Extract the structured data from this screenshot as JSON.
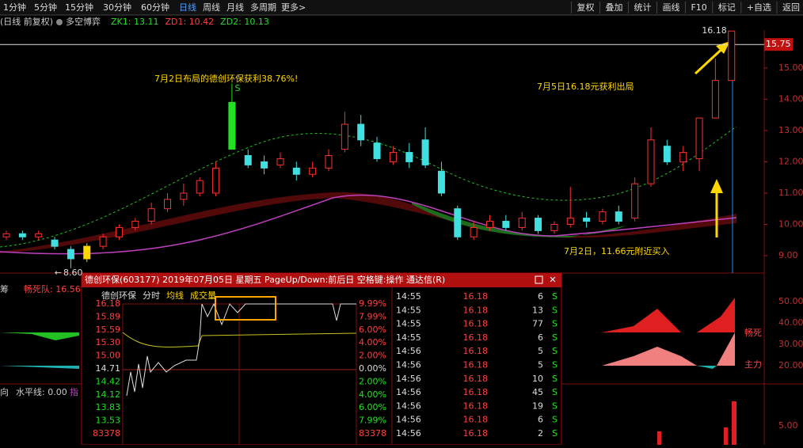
{
  "toolbar": {
    "periods": [
      "1分钟",
      "5分钟",
      "15分钟",
      "30分钟",
      "60分钟",
      "日线",
      "周线",
      "月线",
      "多周期",
      "更多>"
    ],
    "actions": [
      "复权",
      "叠加",
      "统计",
      "画线",
      "F10",
      "标记",
      "+自选",
      "返回"
    ]
  },
  "indicator_bar": {
    "mode": "(日线 前复权)",
    "name": "多空博弈",
    "items": [
      "ZK1: 13.11",
      "ZD1: 10.42",
      "ZD2: 10.13"
    ]
  },
  "price_chart": {
    "ylim": [
      8.57,
      16.16
    ],
    "yticks": [
      {
        "value": 9,
        "label": "9.00"
      },
      {
        "value": 10,
        "label": "10.00"
      },
      {
        "value": 11,
        "label": "11.00"
      },
      {
        "value": 12,
        "label": "12.00"
      },
      {
        "value": 13,
        "label": "13.00"
      },
      {
        "value": 14,
        "label": "14.00"
      },
      {
        "value": 15,
        "label": "15.00"
      }
    ],
    "current_price": 15.75,
    "high_price": 16.18,
    "low_price": {
      "value": 8.6,
      "label": "8.60"
    },
    "signal": "S",
    "candles": [
      [
        9.6,
        9.7,
        9.8,
        9.5
      ],
      [
        9.7,
        9.6,
        9.8,
        9.5
      ],
      [
        9.6,
        9.7,
        9.8,
        9.5
      ],
      [
        9.5,
        9.3,
        9.6,
        9.2
      ],
      [
        9.2,
        8.9,
        9.3,
        8.6
      ],
      [
        8.9,
        9.3,
        9.4,
        8.8
      ],
      [
        9.3,
        9.6,
        9.7,
        9.2
      ],
      [
        9.6,
        9.9,
        10.0,
        9.5
      ],
      [
        9.9,
        10.1,
        10.2,
        9.8
      ],
      [
        10.1,
        10.5,
        10.7,
        10.0
      ],
      [
        10.5,
        10.8,
        11.0,
        10.4
      ],
      [
        10.8,
        11.0,
        11.3,
        10.6
      ],
      [
        11.0,
        11.4,
        11.5,
        10.9
      ],
      [
        11.0,
        11.8,
        12.0,
        10.9
      ],
      [
        12.4,
        13.9,
        14.5,
        12.4
      ],
      [
        12.2,
        11.9,
        12.4,
        11.8
      ],
      [
        12.0,
        11.8,
        12.2,
        11.6
      ],
      [
        11.9,
        12.1,
        12.3,
        11.8
      ],
      [
        11.8,
        11.6,
        12.0,
        11.4
      ],
      [
        11.6,
        11.8,
        12.0,
        11.5
      ],
      [
        11.8,
        12.2,
        12.4,
        11.7
      ],
      [
        12.4,
        13.2,
        13.6,
        12.3
      ],
      [
        13.2,
        12.7,
        13.5,
        12.5
      ],
      [
        12.6,
        12.1,
        12.8,
        12.0
      ],
      [
        12.0,
        12.3,
        12.5,
        11.9
      ],
      [
        12.3,
        12.0,
        12.6,
        11.8
      ],
      [
        12.7,
        11.9,
        13.1,
        11.8
      ],
      [
        11.7,
        11.0,
        12.0,
        10.9
      ],
      [
        10.5,
        9.6,
        10.6,
        9.5
      ],
      [
        9.6,
        9.9,
        10.1,
        9.5
      ],
      [
        9.9,
        10.1,
        10.3,
        9.8
      ],
      [
        10.1,
        9.9,
        10.3,
        9.8
      ],
      [
        9.9,
        10.2,
        10.4,
        9.8
      ],
      [
        10.2,
        9.8,
        10.3,
        9.7
      ],
      [
        9.8,
        10.0,
        10.1,
        9.7
      ],
      [
        10.0,
        10.2,
        11.2,
        9.9
      ],
      [
        10.2,
        10.1,
        10.4,
        9.9
      ],
      [
        10.1,
        10.4,
        10.5,
        10.0
      ],
      [
        10.4,
        10.1,
        10.6,
        10.0
      ],
      [
        10.2,
        11.3,
        11.5,
        10.1
      ],
      [
        11.3,
        12.7,
        13.1,
        11.2
      ],
      [
        12.5,
        12.0,
        12.7,
        11.9
      ],
      [
        12.0,
        12.3,
        12.5,
        11.7
      ],
      [
        12.1,
        13.4,
        13.4,
        11.7
      ],
      [
        13.4,
        14.6,
        15.3,
        13.4
      ],
      [
        14.6,
        16.18,
        16.18,
        14.6
      ]
    ],
    "annotations": [
      "7月2日布局的德创环保获利38.76%!",
      "7月5日16.18元获利出局",
      "7月2日，11.66元附近买入"
    ]
  },
  "lower_panels": {
    "labels": [
      "筹",
      "畅死队: 16.56",
      "向",
      "水平线: 0.00",
      "指"
    ],
    "right_ticks": [
      "50.00",
      "40.00",
      "30.00",
      "20.00",
      "5.00"
    ],
    "right_labels": [
      "畅死",
      "主力"
    ]
  },
  "popup": {
    "title": "德创环保(603177) 2019年07月05日 星期五 PageUp/Down:前后日 空格键:操作 通达信(R)",
    "tabs": [
      "德创环保",
      "分时",
      "均线",
      "成交量"
    ],
    "left_axis": [
      "16.18",
      "15.89",
      "15.59",
      "15.30",
      "15.00",
      "14.71",
      "14.42",
      "14.12",
      "13.83",
      "13.53",
      "83378"
    ],
    "right_axis": [
      "9.99%",
      "7.99%",
      "6.00%",
      "4.00%",
      "2.00%",
      "0.00%",
      "2.00%",
      "4.00%",
      "6.00%",
      "7.99%",
      "83378"
    ]
  },
  "trades": [
    [
      "14:55",
      "16.18",
      "6",
      "S"
    ],
    [
      "14:55",
      "16.18",
      "13",
      "S"
    ],
    [
      "14:55",
      "16.18",
      "77",
      "S"
    ],
    [
      "14:55",
      "16.18",
      "6",
      "S"
    ],
    [
      "14:56",
      "16.18",
      "5",
      "S"
    ],
    [
      "14:56",
      "16.18",
      "5",
      "S"
    ],
    [
      "14:56",
      "16.18",
      "10",
      "S"
    ],
    [
      "14:56",
      "16.18",
      "45",
      "S"
    ],
    [
      "14:56",
      "16.18",
      "19",
      "S"
    ],
    [
      "14:56",
      "16.18",
      "6",
      "S"
    ],
    [
      "14:56",
      "16.18",
      "2",
      "S"
    ]
  ]
}
